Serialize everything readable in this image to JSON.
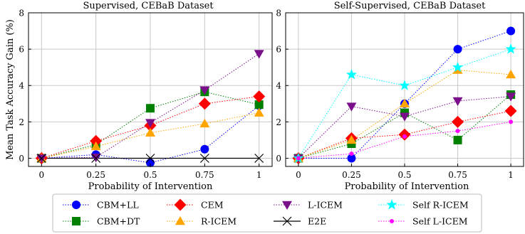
{
  "chart_data": [
    {
      "type": "line",
      "title": "Supervised, CEBaB Dataset",
      "xlabel": "Probability of Intervention",
      "ylabel": "Mean Task Accuracy Gain (%)",
      "x": [
        0,
        0.25,
        0.5,
        0.75,
        1
      ],
      "x_tick_labels": [
        "0",
        "0.25",
        "0.5",
        "0.75",
        "1"
      ],
      "y_ticks": [
        0,
        2,
        4,
        6,
        8
      ],
      "y_tick_labels": [
        "0",
        "2",
        "4",
        "6",
        "8"
      ],
      "xlim": [
        -0.06,
        1.06
      ],
      "ylim": [
        -0.45,
        8
      ],
      "grid": true,
      "series": [
        {
          "name": "CBM+LL",
          "values": [
            0.0,
            0.2,
            -0.25,
            0.5,
            2.9
          ]
        },
        {
          "name": "CBM+DT",
          "values": [
            0.0,
            0.75,
            2.75,
            3.65,
            2.95
          ]
        },
        {
          "name": "CEM",
          "values": [
            0.0,
            0.95,
            1.8,
            3.0,
            3.4
          ]
        },
        {
          "name": "R-ICEM",
          "values": [
            0.0,
            0.65,
            1.4,
            1.9,
            2.5
          ]
        },
        {
          "name": "L-ICEM",
          "values": [
            0.0,
            0.05,
            1.95,
            3.75,
            5.75
          ]
        },
        {
          "name": "E2E",
          "values": [
            0.0,
            0.0,
            0.0,
            0.0,
            0.0
          ]
        }
      ]
    },
    {
      "type": "line",
      "title": "Self-Supervised, CEBaB Dataset",
      "xlabel": "Probability of Intervention",
      "x": [
        0,
        0.25,
        0.5,
        0.75,
        1
      ],
      "x_tick_labels": [
        "0",
        "0.25",
        "0.5",
        "0.75",
        "1"
      ],
      "y_ticks": [
        0,
        2,
        4,
        6,
        8
      ],
      "y_tick_labels": [
        "0",
        "2",
        "4",
        "6",
        "8"
      ],
      "xlim": [
        -0.06,
        1.06
      ],
      "ylim": [
        -0.45,
        8
      ],
      "grid": true,
      "series": [
        {
          "name": "CBM+LL",
          "values": [
            0.0,
            0.0,
            3.0,
            6.0,
            7.0
          ]
        },
        {
          "name": "CBM+DT",
          "values": [
            0.0,
            0.8,
            2.5,
            1.0,
            3.5
          ]
        },
        {
          "name": "CEM",
          "values": [
            0.0,
            1.1,
            1.3,
            2.0,
            2.6
          ]
        },
        {
          "name": "R-ICEM",
          "values": [
            0.0,
            1.0,
            3.0,
            4.85,
            4.6
          ]
        },
        {
          "name": "L-ICEM",
          "values": [
            0.0,
            2.85,
            2.3,
            3.15,
            3.4
          ]
        },
        {
          "name": "Self R-ICEM",
          "values": [
            0.0,
            4.6,
            4.0,
            5.0,
            6.0
          ]
        },
        {
          "name": "Self L-ICEM",
          "values": [
            0.0,
            0.25,
            1.2,
            1.5,
            2.0
          ]
        }
      ]
    }
  ],
  "legend": {
    "placement": "bottom",
    "items": [
      {
        "name": "CBM+LL",
        "color": "#0000ff",
        "marker": "circle"
      },
      {
        "name": "CEM",
        "color": "#ff0000",
        "marker": "diamond"
      },
      {
        "name": "L-ICEM",
        "color": "#7a0f8a",
        "marker": "triangle-down"
      },
      {
        "name": "Self R-ICEM",
        "color": "#00ffff",
        "marker": "star"
      },
      {
        "name": "CBM+DT",
        "color": "#008000",
        "marker": "square"
      },
      {
        "name": "R-ICEM",
        "color": "#ffa500",
        "marker": "triangle-up"
      },
      {
        "name": "E2E",
        "color": "#000000",
        "marker": "x"
      },
      {
        "name": "Self L-ICEM",
        "color": "#ff00ff",
        "marker": "small-circle"
      }
    ]
  }
}
